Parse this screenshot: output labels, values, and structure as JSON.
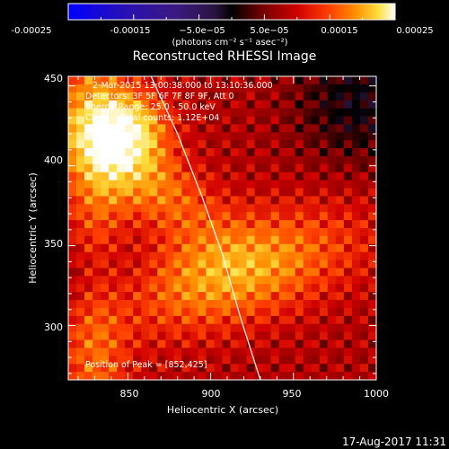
{
  "chart_data": {
    "type": "heatmap",
    "title": "Reconstructed RHESSI Image",
    "xlabel": "Heliocentric X (arcsec)",
    "ylabel": "Heliocentric Y (arcsec)",
    "xlim": [
      814,
      1000
    ],
    "ylim": [
      266,
      456
    ],
    "x_ticks": [
      "850",
      "900",
      "950",
      "1000"
    ],
    "y_ticks": [
      "300",
      "350",
      "400",
      "450"
    ],
    "colorbar": {
      "range": [
        -0.00025,
        0.00025
      ],
      "ticks": [
        "-0.00025",
        "-0.00015",
        "−5.0e−05",
        "5.0e−05",
        "0.00015",
        "0.00025"
      ],
      "label": "(photons cm⁻² s⁻¹ asec⁻²)",
      "colormap": [
        "#0000ff",
        "#2a10b0",
        "#3a1a80",
        "#2a1440",
        "#000000",
        "#7a0000",
        "#d00000",
        "#ff4000",
        "#ff9000",
        "#ffe040",
        "#ffffff"
      ]
    },
    "annotations": {
      "time_range": "2-Mar-2015 13:00:38.000 to 13:10:36.000",
      "detectors": "Detectors: 3F 5F 6F 7F 8F 9F, Att 0",
      "energy": "Energy Range: 25.0 - 50.0 keV",
      "method": "Clean    Total counts: 1.12E+04",
      "peak": "Position of Peak = [852,425]"
    },
    "peak_position": [
      852,
      425
    ],
    "limb_curve": [
      [
        864,
        456
      ],
      [
        880,
        420
      ],
      [
        895,
        380
      ],
      [
        907,
        345
      ],
      [
        918,
        305
      ],
      [
        930,
        266
      ]
    ]
  },
  "footer": {
    "timestamp": "17-Aug-2017 11:31"
  }
}
